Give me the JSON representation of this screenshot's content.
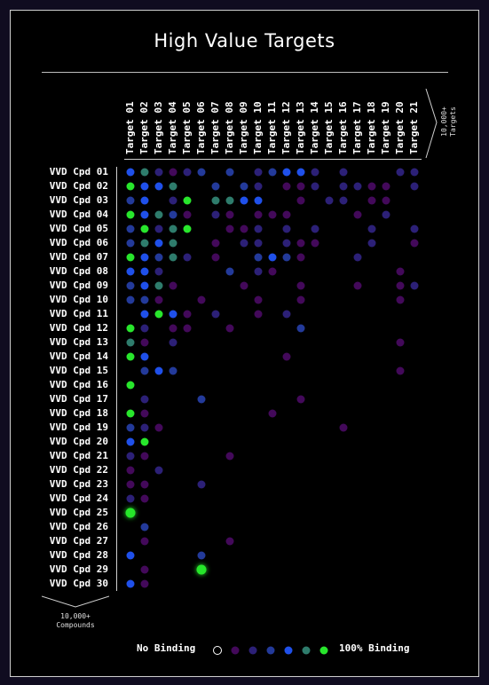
{
  "title": "High Value Targets",
  "targets_note": [
    "10,000+",
    "Targets"
  ],
  "compounds_note": [
    "10,000+",
    "Compounds"
  ],
  "legend": {
    "low_label": "No Binding",
    "high_label": "100% Binding",
    "swatches": [
      "none",
      "#43095a",
      "#2c2077",
      "#233a9a",
      "#1f50ea",
      "#2e7c6c",
      "#28e62c"
    ]
  },
  "colors": {
    "background": "#000000",
    "outer": "#100c20",
    "level_1": "#43095a",
    "level_2": "#2c2077",
    "level_3": "#233a9a",
    "level_4": "#1f50ea",
    "level_5": "#2e7c6c",
    "level_6": "#28e62c"
  },
  "chart_data": {
    "type": "heatmap",
    "title": "High Value Targets",
    "x": [
      "Target 01",
      "Target 02",
      "Target 03",
      "Target 04",
      "Target 05",
      "Target 06",
      "Target 07",
      "Target 08",
      "Target 09",
      "Target 10",
      "Target 11",
      "Target 12",
      "Target 13",
      "Target 14",
      "Target 15",
      "Target 16",
      "Target 17",
      "Target 18",
      "Target 19",
      "Target 20",
      "Target 21"
    ],
    "y": [
      "VVD Cpd 01",
      "VVD Cpd 02",
      "VVD Cpd 03",
      "VVD Cpd 04",
      "VVD Cpd 05",
      "VVD Cpd 06",
      "VVD Cpd 07",
      "VVD Cpd 08",
      "VVD Cpd 09",
      "VVD Cpd 10",
      "VVD Cpd 11",
      "VVD Cpd 12",
      "VVD Cpd 13",
      "VVD Cpd 14",
      "VVD Cpd 15",
      "VVD Cpd 16",
      "VVD Cpd 17",
      "VVD Cpd 18",
      "VVD Cpd 19",
      "VVD Cpd 20",
      "VVD Cpd 21",
      "VVD Cpd 22",
      "VVD Cpd 23",
      "VVD Cpd 24",
      "VVD Cpd 25",
      "VVD Cpd 26",
      "VVD Cpd 27",
      "VVD Cpd 28",
      "VVD Cpd 29",
      "VVD Cpd 30"
    ],
    "scale_min_label": "No Binding",
    "scale_max_label": "100% Binding",
    "levels": 6,
    "highlighted": [
      [
        24,
        0
      ],
      [
        28,
        5
      ]
    ],
    "values": [
      [
        4,
        5,
        2,
        1,
        2,
        3,
        0,
        3,
        0,
        2,
        3,
        4,
        4,
        2,
        0,
        2,
        0,
        0,
        0,
        2,
        2
      ],
      [
        6,
        4,
        4,
        5,
        0,
        0,
        3,
        0,
        3,
        2,
        0,
        1,
        1,
        2,
        0,
        2,
        2,
        1,
        1,
        0,
        2
      ],
      [
        3,
        4,
        0,
        2,
        6,
        0,
        5,
        5,
        4,
        4,
        0,
        0,
        1,
        0,
        2,
        2,
        0,
        1,
        1,
        0,
        0
      ],
      [
        6,
        4,
        5,
        3,
        1,
        0,
        2,
        1,
        0,
        1,
        1,
        1,
        0,
        0,
        0,
        0,
        1,
        0,
        2,
        0,
        0
      ],
      [
        3,
        6,
        2,
        5,
        6,
        0,
        0,
        1,
        1,
        2,
        0,
        2,
        0,
        2,
        0,
        0,
        0,
        2,
        0,
        0,
        2
      ],
      [
        3,
        5,
        4,
        5,
        0,
        0,
        1,
        0,
        2,
        2,
        0,
        2,
        1,
        1,
        0,
        0,
        0,
        2,
        0,
        0,
        1
      ],
      [
        6,
        4,
        3,
        5,
        2,
        0,
        1,
        0,
        0,
        3,
        4,
        3,
        1,
        0,
        0,
        0,
        2,
        0,
        0,
        0,
        0
      ],
      [
        4,
        4,
        2,
        0,
        0,
        0,
        0,
        3,
        0,
        2,
        1,
        0,
        0,
        0,
        0,
        0,
        0,
        0,
        0,
        1,
        0
      ],
      [
        3,
        4,
        5,
        1,
        0,
        0,
        0,
        0,
        1,
        0,
        0,
        0,
        1,
        0,
        0,
        0,
        1,
        0,
        0,
        1,
        2
      ],
      [
        3,
        3,
        1,
        0,
        0,
        1,
        0,
        0,
        0,
        1,
        0,
        0,
        1,
        0,
        0,
        0,
        0,
        0,
        0,
        1,
        0
      ],
      [
        0,
        4,
        6,
        4,
        1,
        0,
        2,
        0,
        0,
        1,
        0,
        2,
        0,
        0,
        0,
        0,
        0,
        0,
        0,
        0,
        0
      ],
      [
        6,
        2,
        0,
        1,
        1,
        0,
        0,
        1,
        0,
        0,
        0,
        0,
        3,
        0,
        0,
        0,
        0,
        0,
        0,
        0,
        0
      ],
      [
        5,
        1,
        0,
        2,
        0,
        0,
        0,
        0,
        0,
        0,
        0,
        0,
        0,
        0,
        0,
        0,
        0,
        0,
        0,
        1,
        0
      ],
      [
        6,
        4,
        0,
        0,
        0,
        0,
        0,
        0,
        0,
        0,
        0,
        1,
        0,
        0,
        0,
        0,
        0,
        0,
        0,
        0,
        0
      ],
      [
        0,
        3,
        4,
        3,
        0,
        0,
        0,
        0,
        0,
        0,
        0,
        0,
        0,
        0,
        0,
        0,
        0,
        0,
        0,
        1,
        0
      ],
      [
        6,
        0,
        0,
        0,
        0,
        0,
        0,
        0,
        0,
        0,
        0,
        0,
        0,
        0,
        0,
        0,
        0,
        0,
        0,
        0,
        0
      ],
      [
        0,
        2,
        0,
        0,
        0,
        3,
        0,
        0,
        0,
        0,
        0,
        0,
        1,
        0,
        0,
        0,
        0,
        0,
        0,
        0,
        0
      ],
      [
        6,
        1,
        0,
        0,
        0,
        0,
        0,
        0,
        0,
        0,
        1,
        0,
        0,
        0,
        0,
        0,
        0,
        0,
        0,
        0,
        0
      ],
      [
        3,
        2,
        1,
        0,
        0,
        0,
        0,
        0,
        0,
        0,
        0,
        0,
        0,
        0,
        0,
        1,
        0,
        0,
        0,
        0,
        0
      ],
      [
        4,
        6,
        0,
        0,
        0,
        0,
        0,
        0,
        0,
        0,
        0,
        0,
        0,
        0,
        0,
        0,
        0,
        0,
        0,
        0,
        0
      ],
      [
        2,
        1,
        0,
        0,
        0,
        0,
        0,
        1,
        0,
        0,
        0,
        0,
        0,
        0,
        0,
        0,
        0,
        0,
        0,
        0,
        0
      ],
      [
        1,
        0,
        2,
        0,
        0,
        0,
        0,
        0,
        0,
        0,
        0,
        0,
        0,
        0,
        0,
        0,
        0,
        0,
        0,
        0,
        0
      ],
      [
        1,
        1,
        0,
        0,
        0,
        2,
        0,
        0,
        0,
        0,
        0,
        0,
        0,
        0,
        0,
        0,
        0,
        0,
        0,
        0,
        0
      ],
      [
        2,
        1,
        0,
        0,
        0,
        0,
        0,
        0,
        0,
        0,
        0,
        0,
        0,
        0,
        0,
        0,
        0,
        0,
        0,
        0,
        0
      ],
      [
        6,
        0,
        0,
        0,
        0,
        0,
        0,
        0,
        0,
        0,
        0,
        0,
        0,
        0,
        0,
        0,
        0,
        0,
        0,
        0,
        0
      ],
      [
        0,
        3,
        0,
        0,
        0,
        0,
        0,
        0,
        0,
        0,
        0,
        0,
        0,
        0,
        0,
        0,
        0,
        0,
        0,
        0,
        0
      ],
      [
        0,
        1,
        0,
        0,
        0,
        0,
        0,
        1,
        0,
        0,
        0,
        0,
        0,
        0,
        0,
        0,
        0,
        0,
        0,
        0,
        0
      ],
      [
        4,
        0,
        0,
        0,
        0,
        3,
        0,
        0,
        0,
        0,
        0,
        0,
        0,
        0,
        0,
        0,
        0,
        0,
        0,
        0,
        0
      ],
      [
        0,
        1,
        0,
        0,
        0,
        6,
        0,
        0,
        0,
        0,
        0,
        0,
        0,
        0,
        0,
        0,
        0,
        0,
        0,
        0,
        0
      ],
      [
        4,
        1,
        0,
        0,
        0,
        0,
        0,
        0,
        0,
        0,
        0,
        0,
        0,
        0,
        0,
        0,
        0,
        0,
        0,
        0,
        0
      ]
    ]
  }
}
